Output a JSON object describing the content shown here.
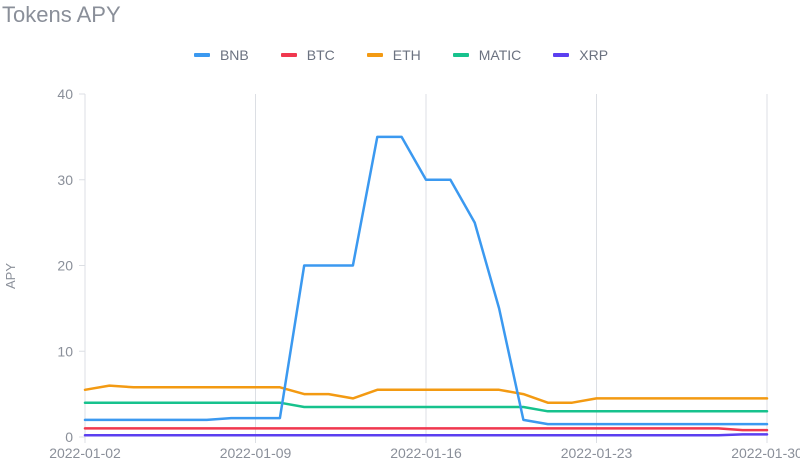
{
  "chart_data": {
    "type": "line",
    "title": "Tokens APY",
    "ylabel": "APY",
    "xlabel": "",
    "ylim": [
      0,
      40
    ],
    "yticks": [
      0,
      10,
      20,
      30,
      40
    ],
    "xlim": [
      "2022-01-02",
      "2022-01-30"
    ],
    "xticks": [
      "2022-01-02",
      "2022-01-09",
      "2022-01-16",
      "2022-01-23",
      "2022-01-30"
    ],
    "grid": "vertical",
    "legend_position": "top",
    "x": [
      "2022-01-02",
      "2022-01-03",
      "2022-01-04",
      "2022-01-05",
      "2022-01-06",
      "2022-01-07",
      "2022-01-08",
      "2022-01-09",
      "2022-01-10",
      "2022-01-11",
      "2022-01-12",
      "2022-01-13",
      "2022-01-14",
      "2022-01-15",
      "2022-01-16",
      "2022-01-17",
      "2022-01-18",
      "2022-01-19",
      "2022-01-20",
      "2022-01-21",
      "2022-01-22",
      "2022-01-23",
      "2022-01-24",
      "2022-01-25",
      "2022-01-26",
      "2022-01-27",
      "2022-01-28",
      "2022-01-29",
      "2022-01-30"
    ],
    "series": [
      {
        "name": "BNB",
        "color": "#3b99f0",
        "values": [
          2,
          2,
          2,
          2,
          2,
          2,
          2.2,
          2.2,
          2.2,
          20,
          20,
          20,
          35,
          35,
          30,
          30,
          25,
          15,
          2,
          1.5,
          1.5,
          1.5,
          1.5,
          1.5,
          1.5,
          1.5,
          1.5,
          1.5,
          1.5
        ]
      },
      {
        "name": "BTC",
        "color": "#f0384f",
        "values": [
          1,
          1,
          1,
          1,
          1,
          1,
          1,
          1,
          1,
          1,
          1,
          1,
          1,
          1,
          1,
          1,
          1,
          1,
          1,
          1,
          1,
          1,
          1,
          1,
          1,
          1,
          1,
          0.8,
          0.8
        ]
      },
      {
        "name": "ETH",
        "color": "#f39a12",
        "values": [
          5.5,
          6,
          5.8,
          5.8,
          5.8,
          5.8,
          5.8,
          5.8,
          5.8,
          5,
          5,
          4.5,
          5.5,
          5.5,
          5.5,
          5.5,
          5.5,
          5.5,
          5,
          4,
          4,
          4.5,
          4.5,
          4.5,
          4.5,
          4.5,
          4.5,
          4.5,
          4.5
        ]
      },
      {
        "name": "MATIC",
        "color": "#17c28d",
        "values": [
          4,
          4,
          4,
          4,
          4,
          4,
          4,
          4,
          4,
          3.5,
          3.5,
          3.5,
          3.5,
          3.5,
          3.5,
          3.5,
          3.5,
          3.5,
          3.5,
          3,
          3,
          3,
          3,
          3,
          3,
          3,
          3,
          3,
          3
        ]
      },
      {
        "name": "XRP",
        "color": "#5b3ff0",
        "values": [
          0.2,
          0.2,
          0.2,
          0.2,
          0.2,
          0.2,
          0.2,
          0.2,
          0.2,
          0.2,
          0.2,
          0.2,
          0.2,
          0.2,
          0.2,
          0.2,
          0.2,
          0.2,
          0.2,
          0.2,
          0.2,
          0.2,
          0.2,
          0.2,
          0.2,
          0.2,
          0.2,
          0.3,
          0.3
        ]
      }
    ]
  }
}
